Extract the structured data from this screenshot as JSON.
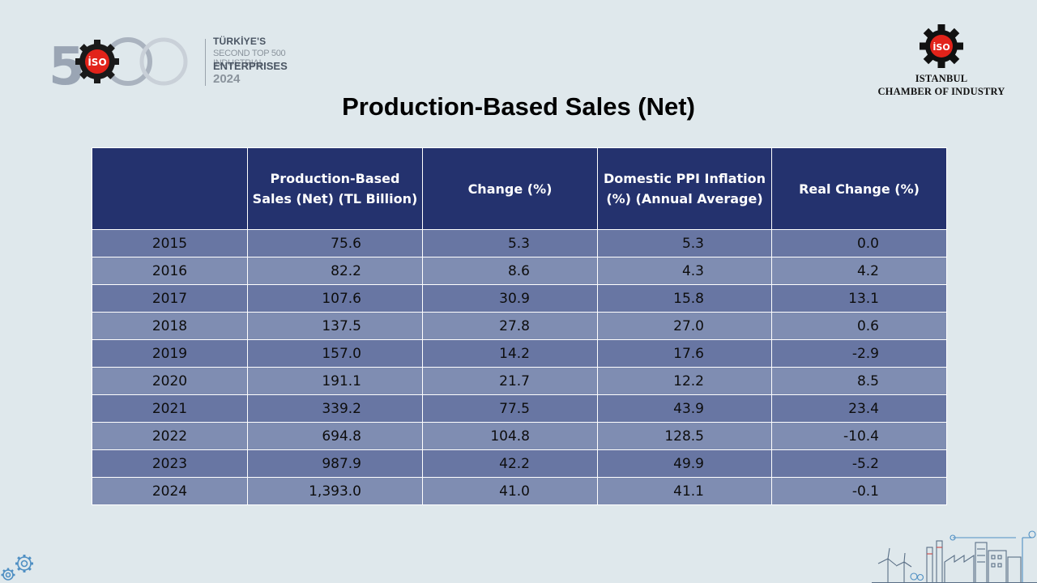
{
  "logo500": {
    "digits": "500",
    "line1": "TÜRKİYE'S",
    "line2": "SECOND TOP 500 INDUSTRIAL",
    "line3": "ENTERPRISES",
    "line4": "2024",
    "badge": "İSO"
  },
  "iso": {
    "badge": "İSO",
    "line1": "ISTANBUL",
    "line2": "CHAMBER OF INDUSTRY"
  },
  "title": "Production-Based Sales (Net)",
  "table": {
    "headers": [
      "",
      "Production-Based Sales (Net) (TL Billion)",
      "Change (%)",
      "Domestic PPI Inflation (%) (Annual Average)",
      "Real Change (%)"
    ],
    "rows": [
      [
        "2015",
        "75.6",
        "5.3",
        "5.3",
        "0.0"
      ],
      [
        "2016",
        "82.2",
        "8.6",
        "4.3",
        "4.2"
      ],
      [
        "2017",
        "107.6",
        "30.9",
        "15.8",
        "13.1"
      ],
      [
        "2018",
        "137.5",
        "27.8",
        "27.0",
        "0.6"
      ],
      [
        "2019",
        "157.0",
        "14.2",
        "17.6",
        "-2.9"
      ],
      [
        "2020",
        "191.1",
        "21.7",
        "12.2",
        "8.5"
      ],
      [
        "2021",
        "339.2",
        "77.5",
        "43.9",
        "23.4"
      ],
      [
        "2022",
        "694.8",
        "104.8",
        "128.5",
        "-10.4"
      ],
      [
        "2023",
        "987.9",
        "42.2",
        "49.9",
        "-5.2"
      ],
      [
        "2024",
        "1,393.0",
        "41.0",
        "41.1",
        "-0.1"
      ]
    ]
  },
  "colors": {
    "background": "#dfe8ec",
    "header": "#24326e",
    "row_dark": "#6876a3",
    "row_light": "#7f8db2",
    "iso_red": "#e2231a"
  },
  "icons": [
    "iso-gear-logo-icon",
    "gears-icon",
    "factory-skyline-icon"
  ]
}
